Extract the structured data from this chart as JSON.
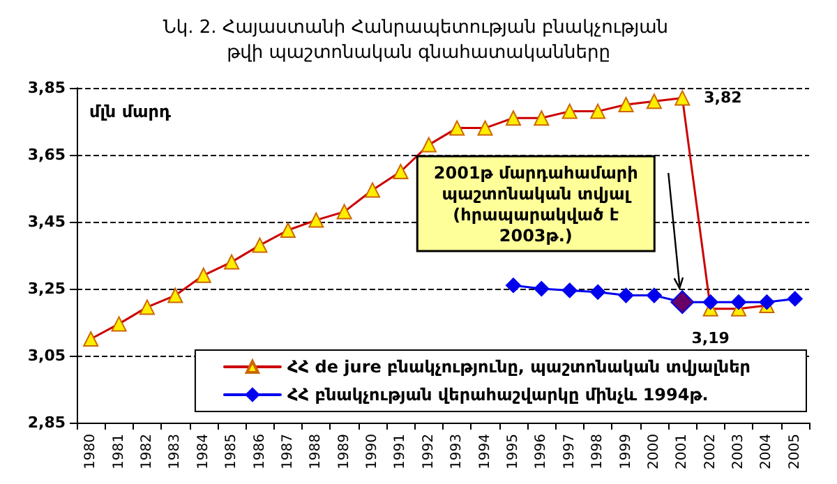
{
  "chart_data": {
    "type": "line",
    "title": "Նկ. 2. Հայաստանի Հանրապետության բնակչության թվի պաշտոնական գնահատականները",
    "ylabel": "մլն մարդ",
    "categories": [
      "1980",
      "1981",
      "1982",
      "1983",
      "1984",
      "1985",
      "1986",
      "1987",
      "1988",
      "1989",
      "1990",
      "1991",
      "1992",
      "1993",
      "1994",
      "1995",
      "1996",
      "1997",
      "1998",
      "1999",
      "2000",
      "2001",
      "2002",
      "2003",
      "2004",
      "2005"
    ],
    "series": [
      {
        "name": "ՀՀ de jure բնակչությունը, պաշտոնական տվյալներ",
        "color": "#cc0000",
        "marker": "triangle",
        "values": [
          3.1,
          3.145,
          3.195,
          3.23,
          3.29,
          3.33,
          3.38,
          3.425,
          3.455,
          3.48,
          3.545,
          3.6,
          3.68,
          3.73,
          3.73,
          3.76,
          3.76,
          3.78,
          3.78,
          3.8,
          3.81,
          3.82,
          3.19,
          3.19,
          3.2,
          null
        ],
        "value_labels": [
          null,
          null,
          null,
          null,
          null,
          null,
          null,
          null,
          null,
          null,
          null,
          null,
          null,
          null,
          null,
          null,
          null,
          null,
          null,
          null,
          null,
          "3,82",
          "3,19",
          null,
          null,
          null
        ]
      },
      {
        "name": "ՀՀ բնակչության վերահաշվարկը մինչև 1994թ.",
        "color": "#0000ee",
        "marker": "diamond",
        "values": [
          null,
          null,
          null,
          null,
          null,
          null,
          null,
          null,
          null,
          null,
          null,
          null,
          null,
          null,
          null,
          3.26,
          3.25,
          3.245,
          3.24,
          3.23,
          3.23,
          3.21,
          3.21,
          3.21,
          3.21,
          3.22
        ],
        "colors": [
          null,
          null,
          null,
          null,
          null,
          null,
          null,
          null,
          null,
          null,
          null,
          null,
          null,
          null,
          null,
          "#0000ee",
          "#0000ee",
          "#0000ee",
          "#0000ee",
          "#0000ee",
          "#0000ee",
          "#660066",
          "#0000ee",
          "#0000ee",
          "#0000ee",
          "#0000ee"
        ]
      }
    ],
    "ylim": [
      2.85,
      3.85
    ],
    "yticks": [
      {
        "value": 2.85,
        "label": "2,85"
      },
      {
        "value": 3.05,
        "label": "3,05"
      },
      {
        "value": 3.25,
        "label": "3,25"
      },
      {
        "value": 3.45,
        "label": "3,45"
      },
      {
        "value": 3.65,
        "label": "3,65"
      },
      {
        "value": 3.85,
        "label": "3,85"
      }
    ],
    "annotations": [
      "2001թ մարդահամարի պաշտոնական տվյալ (հրապարակված է 2003թ.)"
    ],
    "grid": "y",
    "legend": "bottom right",
    "line_style": "solid"
  }
}
